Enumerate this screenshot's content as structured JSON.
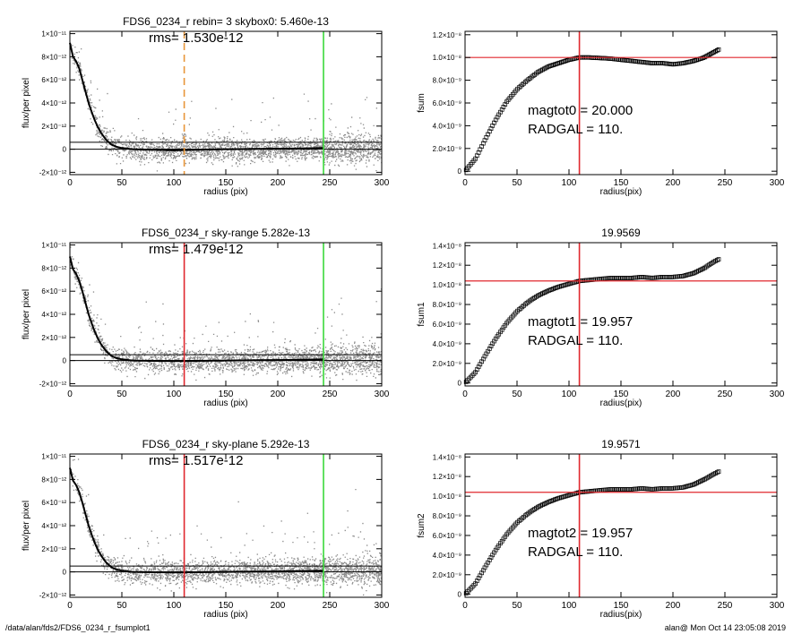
{
  "footer": {
    "left": "/data/alan/fds2/FDS6_0234_r_fsumplot1",
    "right": "alan@  Mon Oct 14 23:05:08 2019"
  },
  "colors": {
    "points": "#8a8a8a",
    "profile": "#000000",
    "radgal_dashed": "#e8963a",
    "radgal": "#e0282e",
    "outer_radius": "#3cd93c",
    "fsum_level": "#e0282e"
  },
  "chart_data": [
    {
      "id": "profile-1",
      "type": "scatter",
      "title": "FDS6_0234_r rebin= 3    skybox0:  5.460e-13",
      "rms_label": "rms= 1.530e-12",
      "xlabel": "radius (pix)",
      "ylabel": "flux/per pixel",
      "xlim": [
        0,
        300
      ],
      "ylim": [
        -2.2e-12,
        1.02e-11
      ],
      "xticks": [
        0,
        50,
        100,
        150,
        200,
        250,
        300
      ],
      "xtick_labels": [
        "0",
        "50",
        "100",
        "150",
        "200",
        "250",
        "300"
      ],
      "yticks": [
        -2e-12,
        0,
        2e-12,
        4e-12,
        6e-12,
        8e-12,
        1e-11
      ],
      "ytick_labels": [
        "-2×10⁻¹²",
        "0",
        "2×10⁻¹²",
        "4×10⁻¹²",
        "6×10⁻¹²",
        "8×10⁻¹²",
        "1×10⁻¹¹"
      ],
      "hlines": [
        0,
        6e-13
      ],
      "vlines": [
        {
          "x": 110,
          "color": "radgal_dashed",
          "dashed": true
        },
        {
          "x": 244,
          "color": "outer_radius",
          "dashed": false
        }
      ],
      "profile": {
        "x": [
          0,
          3,
          6,
          9,
          12,
          15,
          18,
          21,
          24,
          27,
          30,
          35,
          40,
          45,
          50,
          60,
          80,
          100,
          120,
          150,
          180,
          210,
          244
        ],
        "y": [
          9.2e-12,
          8e-12,
          7.6e-12,
          7e-12,
          6e-12,
          5e-12,
          4e-12,
          3.2e-12,
          2.5e-12,
          1.9e-12,
          1.4e-12,
          8e-13,
          4e-13,
          2e-13,
          1e-13,
          0,
          -5e-14,
          -1e-13,
          -5e-14,
          0,
          3e-14,
          5e-14,
          1e-13
        ]
      }
    },
    {
      "id": "fsum-0",
      "type": "scatter",
      "title": "",
      "xlabel": "radius(pix)",
      "ylabel": "fsum",
      "xlim": [
        0,
        300
      ],
      "ylim": [
        -3e-10,
        1.23e-08
      ],
      "xticks": [
        0,
        50,
        100,
        150,
        200,
        250,
        300
      ],
      "xtick_labels": [
        "0",
        "50",
        "100",
        "150",
        "200",
        "250",
        "300"
      ],
      "yticks": [
        0,
        2e-09,
        4e-09,
        6e-09,
        8e-09,
        1e-08,
        1.2e-08
      ],
      "ytick_labels": [
        "0",
        "2.0×10⁻⁹",
        "4.0×10⁻⁹",
        "6.0×10⁻⁹",
        "8.0×10⁻⁹",
        "1.0×10⁻⁸",
        "1.2×10⁻⁸"
      ],
      "hline": 1e-08,
      "vline": 110,
      "annotation": {
        "magtot_label": "magtot0 =  20.000",
        "radgal_label": "RADGAL =     110."
      },
      "growth": {
        "x": [
          0,
          10,
          20,
          30,
          40,
          50,
          60,
          70,
          80,
          90,
          100,
          110,
          120,
          130,
          140,
          150,
          160,
          170,
          180,
          190,
          200,
          210,
          220,
          230,
          240,
          244
        ],
        "y": [
          0,
          1.1e-09,
          2.9e-09,
          4.6e-09,
          6.1e-09,
          7.2e-09,
          8e-09,
          8.7e-09,
          9.2e-09,
          9.5e-09,
          9.8e-09,
          1e-08,
          1e-08,
          9.95e-09,
          9.9e-09,
          9.8e-09,
          9.7e-09,
          9.6e-09,
          9.5e-09,
          9.5e-09,
          9.4e-09,
          9.5e-09,
          9.7e-09,
          1e-08,
          1.05e-08,
          1.07e-08
        ]
      },
      "envelope": 1.5e-10
    },
    {
      "id": "profile-2",
      "type": "scatter",
      "title": "FDS6_0234_r sky-range  5.282e-13",
      "rms_label": "rms= 1.479e-12",
      "xlabel": "radius (pix)",
      "ylabel": "flux/per pixel",
      "xlim": [
        0,
        300
      ],
      "ylim": [
        -2.2e-12,
        1.02e-11
      ],
      "xticks": [
        0,
        50,
        100,
        150,
        200,
        250,
        300
      ],
      "xtick_labels": [
        "0",
        "50",
        "100",
        "150",
        "200",
        "250",
        "300"
      ],
      "yticks": [
        -2e-12,
        0,
        2e-12,
        4e-12,
        6e-12,
        8e-12,
        1e-11
      ],
      "ytick_labels": [
        "-2×10⁻¹²",
        "0",
        "2×10⁻¹²",
        "4×10⁻¹²",
        "6×10⁻¹²",
        "8×10⁻¹²",
        "1×10⁻¹¹"
      ],
      "hlines": [
        0,
        5e-13
      ],
      "vlines": [
        {
          "x": 110,
          "color": "radgal",
          "dashed": false
        },
        {
          "x": 244,
          "color": "outer_radius",
          "dashed": false
        }
      ],
      "profile": {
        "x": [
          0,
          3,
          6,
          9,
          12,
          15,
          18,
          21,
          24,
          27,
          30,
          35,
          40,
          45,
          50,
          60,
          80,
          100,
          120,
          150,
          180,
          210,
          244
        ],
        "y": [
          9e-12,
          7.9e-12,
          7.5e-12,
          6.9e-12,
          6e-12,
          5e-12,
          4e-12,
          3.2e-12,
          2.5e-12,
          1.9e-12,
          1.4e-12,
          8e-13,
          4e-13,
          2e-13,
          1e-13,
          0,
          -3e-14,
          -5e-14,
          -3e-14,
          0,
          3e-14,
          5e-14,
          1e-13
        ]
      }
    },
    {
      "id": "fsum-1",
      "type": "scatter",
      "title": "19.9569",
      "xlabel": "radius(pix)",
      "ylabel": "fsum1",
      "xlim": [
        0,
        300
      ],
      "ylim": [
        -3e-10,
        1.43e-08
      ],
      "xticks": [
        0,
        50,
        100,
        150,
        200,
        250,
        300
      ],
      "xtick_labels": [
        "0",
        "50",
        "100",
        "150",
        "200",
        "250",
        "300"
      ],
      "yticks": [
        0,
        2e-09,
        4e-09,
        6e-09,
        8e-09,
        1e-08,
        1.2e-08,
        1.4e-08
      ],
      "ytick_labels": [
        "0",
        "2.0×10⁻⁹",
        "4.0×10⁻⁹",
        "6.0×10⁻⁹",
        "8.0×10⁻⁹",
        "1.0×10⁻⁸",
        "1.2×10⁻⁸",
        "1.4×10⁻⁸"
      ],
      "hline": 1.04e-08,
      "vline": 110,
      "annotation": {
        "magtot_label": "magtot1 =  19.957",
        "radgal_label": "RADGAL =     110."
      },
      "growth": {
        "x": [
          0,
          10,
          20,
          30,
          40,
          50,
          60,
          70,
          80,
          90,
          100,
          110,
          120,
          130,
          140,
          150,
          160,
          170,
          180,
          190,
          200,
          210,
          220,
          230,
          240,
          244
        ],
        "y": [
          0,
          1.1e-09,
          2.9e-09,
          4.6e-09,
          6.1e-09,
          7.3e-09,
          8.2e-09,
          8.9e-09,
          9.4e-09,
          9.8e-09,
          1.01e-08,
          1.04e-08,
          1.05e-08,
          1.06e-08,
          1.07e-08,
          1.07e-08,
          1.07e-08,
          1.08e-08,
          1.07e-08,
          1.08e-08,
          1.08e-08,
          1.09e-08,
          1.12e-08,
          1.17e-08,
          1.24e-08,
          1.26e-08
        ]
      },
      "envelope": 0
    },
    {
      "id": "profile-3",
      "type": "scatter",
      "title": "FDS6_0234_r sky-plane  5.292e-13",
      "rms_label": "rms= 1.517e-12",
      "xlabel": "radius (pix)",
      "ylabel": "flux/per pixel",
      "xlim": [
        0,
        300
      ],
      "ylim": [
        -2.2e-12,
        1.02e-11
      ],
      "xticks": [
        0,
        50,
        100,
        150,
        200,
        250,
        300
      ],
      "xtick_labels": [
        "0",
        "50",
        "100",
        "150",
        "200",
        "250",
        "300"
      ],
      "yticks": [
        -2e-12,
        0,
        2e-12,
        4e-12,
        6e-12,
        8e-12,
        1e-11
      ],
      "ytick_labels": [
        "-2×10⁻¹²",
        "0",
        "2×10⁻¹²",
        "4×10⁻¹²",
        "6×10⁻¹²",
        "8×10⁻¹²",
        "1×10⁻¹¹"
      ],
      "hlines": [
        0,
        5e-13
      ],
      "vlines": [
        {
          "x": 110,
          "color": "radgal",
          "dashed": false
        },
        {
          "x": 244,
          "color": "outer_radius",
          "dashed": false
        }
      ],
      "profile": {
        "x": [
          0,
          3,
          6,
          9,
          12,
          15,
          18,
          21,
          24,
          27,
          30,
          35,
          40,
          45,
          50,
          60,
          80,
          100,
          120,
          150,
          180,
          210,
          244
        ],
        "y": [
          9e-12,
          7.9e-12,
          7.5e-12,
          6.9e-12,
          6e-12,
          5e-12,
          4e-12,
          3.2e-12,
          2.5e-12,
          1.9e-12,
          1.4e-12,
          8e-13,
          4e-13,
          2e-13,
          1e-13,
          0,
          -3e-14,
          -5e-14,
          -3e-14,
          0,
          3e-14,
          5e-14,
          1e-13
        ]
      }
    },
    {
      "id": "fsum-2",
      "type": "scatter",
      "title": "19.9571",
      "xlabel": "radius(pix)",
      "ylabel": "fsum2",
      "xlim": [
        0,
        300
      ],
      "ylim": [
        -3e-10,
        1.43e-08
      ],
      "xticks": [
        0,
        50,
        100,
        150,
        200,
        250,
        300
      ],
      "xtick_labels": [
        "0",
        "50",
        "100",
        "150",
        "200",
        "250",
        "300"
      ],
      "yticks": [
        0,
        2e-09,
        4e-09,
        6e-09,
        8e-09,
        1e-08,
        1.2e-08,
        1.4e-08
      ],
      "ytick_labels": [
        "0",
        "2.0×10⁻⁹",
        "4.0×10⁻⁹",
        "6.0×10⁻⁹",
        "8.0×10⁻⁹",
        "1.0×10⁻⁸",
        "1.2×10⁻⁸",
        "1.4×10⁻⁸"
      ],
      "hline": 1.04e-08,
      "vline": 110,
      "annotation": {
        "magtot_label": "magtot2 =  19.957",
        "radgal_label": "RADGAL =     110."
      },
      "growth": {
        "x": [
          0,
          10,
          20,
          30,
          40,
          50,
          60,
          70,
          80,
          90,
          100,
          110,
          120,
          130,
          140,
          150,
          160,
          170,
          180,
          190,
          200,
          210,
          220,
          230,
          240,
          244
        ],
        "y": [
          0,
          1.1e-09,
          2.9e-09,
          4.6e-09,
          6.1e-09,
          7.3e-09,
          8.2e-09,
          8.9e-09,
          9.4e-09,
          9.8e-09,
          1.01e-08,
          1.04e-08,
          1.05e-08,
          1.06e-08,
          1.07e-08,
          1.07e-08,
          1.07e-08,
          1.08e-08,
          1.07e-08,
          1.08e-08,
          1.08e-08,
          1.09e-08,
          1.12e-08,
          1.17e-08,
          1.23e-08,
          1.25e-08
        ]
      },
      "envelope": 0
    }
  ]
}
